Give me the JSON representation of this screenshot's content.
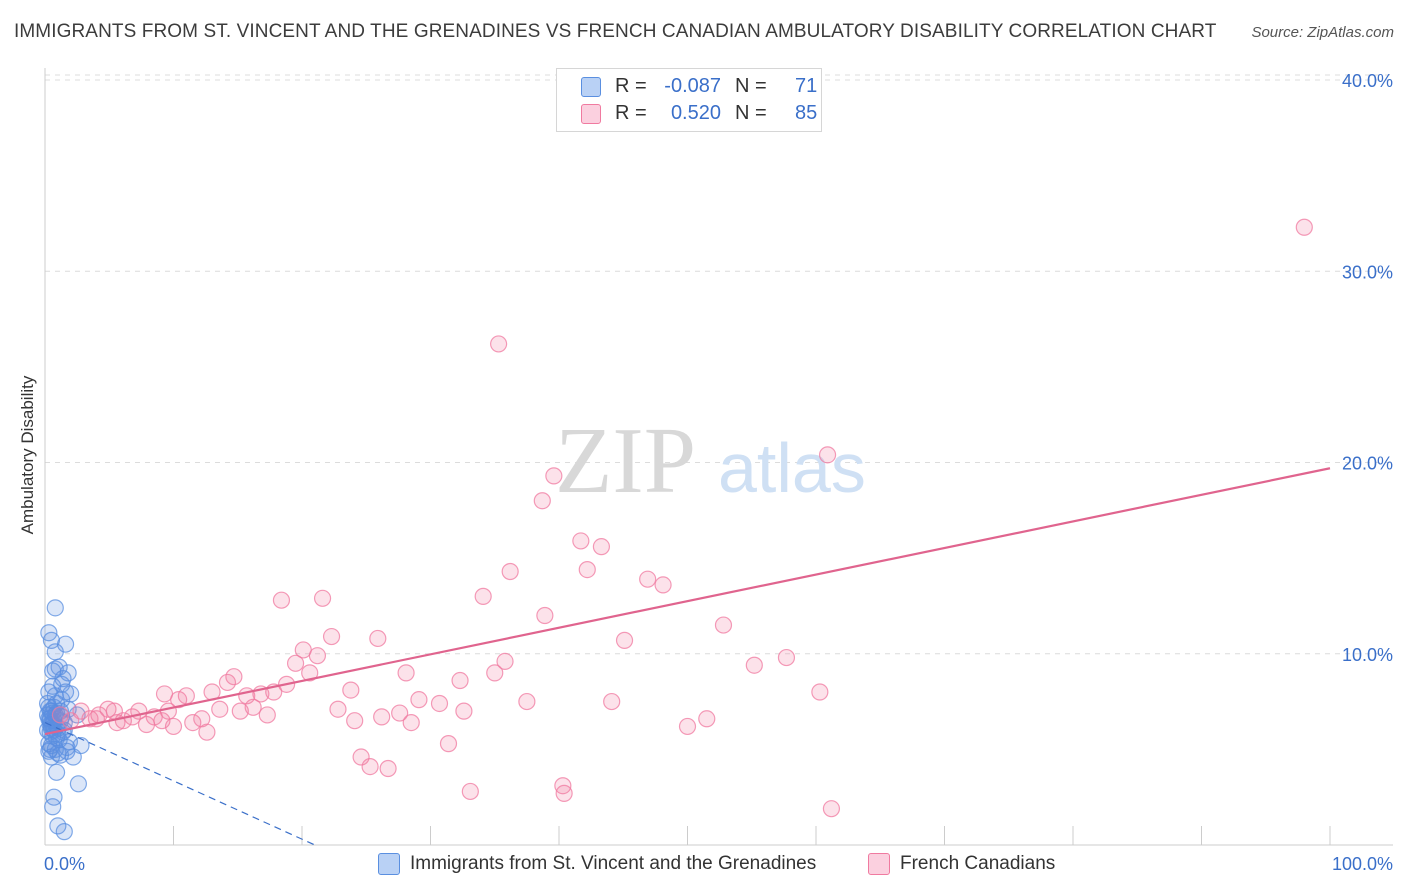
{
  "title": "IMMIGRANTS FROM ST. VINCENT AND THE GRENADINES VS FRENCH CANADIAN AMBULATORY DISABILITY CORRELATION CHART",
  "source": "Source: ZipAtlas.com",
  "watermark": {
    "zip": "ZIP",
    "atlas": "atlas"
  },
  "legend": {
    "r_label": "R =",
    "n_label": "N =",
    "rows": [
      {
        "r": "-0.087",
        "n": "71",
        "color": "#5a8fe0"
      },
      {
        "r": "0.520",
        "n": "85",
        "color": "#f07aa0"
      }
    ]
  },
  "chart_data": {
    "type": "scatter",
    "title": "IMMIGRANTS FROM ST. VINCENT AND THE GRENADINES VS FRENCH CANADIAN AMBULATORY DISABILITY CORRELATION CHART",
    "xlabel": "",
    "ylabel": "Ambulatory Disability",
    "xlim": [
      0,
      100
    ],
    "ylim": [
      0,
      42
    ],
    "x_tick_labels": [
      "0.0%",
      "100.0%"
    ],
    "y_ticks": [
      10,
      20,
      30,
      40
    ],
    "y_tick_labels": [
      "10.0%",
      "20.0%",
      "30.0%",
      "40.0%"
    ],
    "grid": true,
    "legend_position": "top-center",
    "series": [
      {
        "name": "Immigrants from St. Vincent and the Grenadines",
        "color": "#5a8fe0",
        "r": -0.087,
        "n": 71,
        "trend": [
          [
            0,
            6.4
          ],
          [
            21,
            0
          ]
        ],
        "points": [
          [
            0.3,
            6.6
          ],
          [
            0.5,
            7.0
          ],
          [
            0.4,
            5.9
          ],
          [
            0.6,
            6.3
          ],
          [
            0.8,
            6.8
          ],
          [
            0.2,
            7.4
          ],
          [
            0.5,
            6.1
          ],
          [
            0.9,
            5.6
          ],
          [
            0.3,
            5.3
          ],
          [
            1.2,
            6.5
          ],
          [
            0.7,
            7.2
          ],
          [
            0.4,
            5.0
          ],
          [
            1.0,
            4.8
          ],
          [
            0.6,
            8.3
          ],
          [
            1.4,
            8.7
          ],
          [
            0.8,
            9.2
          ],
          [
            1.8,
            9.0
          ],
          [
            0.5,
            10.7
          ],
          [
            1.6,
            10.5
          ],
          [
            0.3,
            11.1
          ],
          [
            0.8,
            12.4
          ],
          [
            2.0,
            7.9
          ],
          [
            1.3,
            7.6
          ],
          [
            0.9,
            6.9
          ],
          [
            1.5,
            6.0
          ],
          [
            0.4,
            6.3
          ],
          [
            1.1,
            5.5
          ],
          [
            2.2,
            4.6
          ],
          [
            1.7,
            4.9
          ],
          [
            2.6,
            3.2
          ],
          [
            0.9,
            3.8
          ],
          [
            0.7,
            2.5
          ],
          [
            0.6,
            2.0
          ],
          [
            1.0,
            1.0
          ],
          [
            1.5,
            0.7
          ],
          [
            2.8,
            5.2
          ],
          [
            1.9,
            5.4
          ],
          [
            0.5,
            4.6
          ],
          [
            1.2,
            4.7
          ],
          [
            0.3,
            8.0
          ],
          [
            0.8,
            7.8
          ],
          [
            1.6,
            8.0
          ],
          [
            0.2,
            6.0
          ],
          [
            0.6,
            5.7
          ],
          [
            1.0,
            6.1
          ],
          [
            0.4,
            7.0
          ],
          [
            1.3,
            6.7
          ],
          [
            0.9,
            7.4
          ],
          [
            0.7,
            6.5
          ],
          [
            0.3,
            4.9
          ],
          [
            1.1,
            9.3
          ],
          [
            0.6,
            9.1
          ],
          [
            1.8,
            7.1
          ],
          [
            2.5,
            6.8
          ],
          [
            0.5,
            5.2
          ],
          [
            1.4,
            5.9
          ],
          [
            0.8,
            5.0
          ],
          [
            0.2,
            6.8
          ],
          [
            0.7,
            6.0
          ],
          [
            1.2,
            7.0
          ],
          [
            0.4,
            6.6
          ],
          [
            0.9,
            6.2
          ],
          [
            1.5,
            6.4
          ],
          [
            0.3,
            7.2
          ],
          [
            0.6,
            6.9
          ],
          [
            1.0,
            5.8
          ],
          [
            0.5,
            6.3
          ],
          [
            1.7,
            5.1
          ],
          [
            0.8,
            10.1
          ],
          [
            1.3,
            8.4
          ],
          [
            0.4,
            6.5
          ]
        ]
      },
      {
        "name": "French Canadians",
        "color": "#f07aa0",
        "r": 0.52,
        "n": 85,
        "trend": [
          [
            0,
            5.8
          ],
          [
            100,
            19.7
          ]
        ],
        "points": [
          [
            1.2,
            6.8
          ],
          [
            2.0,
            6.5
          ],
          [
            2.8,
            7.0
          ],
          [
            3.5,
            6.6
          ],
          [
            4.2,
            6.8
          ],
          [
            4.9,
            7.1
          ],
          [
            5.4,
            7.0
          ],
          [
            6.1,
            6.5
          ],
          [
            6.8,
            6.7
          ],
          [
            7.3,
            7.0
          ],
          [
            7.9,
            6.3
          ],
          [
            8.5,
            6.7
          ],
          [
            9.1,
            6.5
          ],
          [
            9.6,
            7.0
          ],
          [
            10.0,
            6.2
          ],
          [
            10.4,
            7.6
          ],
          [
            11.0,
            7.8
          ],
          [
            11.5,
            6.4
          ],
          [
            12.2,
            6.6
          ],
          [
            12.6,
            5.9
          ],
          [
            13.0,
            8.0
          ],
          [
            13.6,
            7.1
          ],
          [
            14.2,
            8.5
          ],
          [
            14.7,
            8.8
          ],
          [
            15.2,
            7.0
          ],
          [
            15.7,
            7.8
          ],
          [
            16.2,
            7.2
          ],
          [
            16.8,
            7.9
          ],
          [
            17.3,
            6.8
          ],
          [
            17.8,
            8.0
          ],
          [
            18.4,
            12.8
          ],
          [
            18.8,
            8.4
          ],
          [
            19.5,
            9.5
          ],
          [
            20.1,
            10.2
          ],
          [
            20.6,
            9.0
          ],
          [
            21.2,
            9.9
          ],
          [
            21.6,
            12.9
          ],
          [
            22.3,
            10.9
          ],
          [
            22.8,
            7.1
          ],
          [
            23.8,
            8.1
          ],
          [
            24.1,
            6.5
          ],
          [
            24.6,
            4.6
          ],
          [
            25.3,
            4.1
          ],
          [
            25.9,
            10.8
          ],
          [
            26.2,
            6.7
          ],
          [
            26.7,
            4.0
          ],
          [
            27.6,
            6.9
          ],
          [
            28.1,
            9.0
          ],
          [
            28.5,
            6.4
          ],
          [
            29.1,
            7.6
          ],
          [
            30.7,
            7.4
          ],
          [
            31.4,
            5.3
          ],
          [
            32.3,
            8.6
          ],
          [
            32.6,
            7.0
          ],
          [
            33.1,
            2.8
          ],
          [
            34.1,
            13.0
          ],
          [
            35.0,
            9.0
          ],
          [
            35.3,
            26.2
          ],
          [
            35.8,
            9.6
          ],
          [
            36.2,
            14.3
          ],
          [
            37.5,
            7.5
          ],
          [
            38.7,
            18.0
          ],
          [
            38.9,
            12.0
          ],
          [
            39.6,
            19.3
          ],
          [
            40.3,
            3.1
          ],
          [
            40.4,
            2.7
          ],
          [
            41.7,
            15.9
          ],
          [
            42.2,
            14.4
          ],
          [
            43.3,
            15.6
          ],
          [
            44.1,
            7.5
          ],
          [
            45.1,
            10.7
          ],
          [
            46.9,
            13.9
          ],
          [
            48.1,
            13.6
          ],
          [
            50.0,
            6.2
          ],
          [
            51.5,
            6.6
          ],
          [
            52.8,
            11.5
          ],
          [
            55.2,
            9.4
          ],
          [
            57.7,
            9.8
          ],
          [
            60.3,
            8.0
          ],
          [
            60.9,
            20.4
          ],
          [
            61.2,
            1.9
          ],
          [
            98.0,
            32.3
          ],
          [
            4.0,
            6.6
          ],
          [
            5.6,
            6.4
          ],
          [
            9.3,
            7.9
          ]
        ]
      }
    ]
  }
}
